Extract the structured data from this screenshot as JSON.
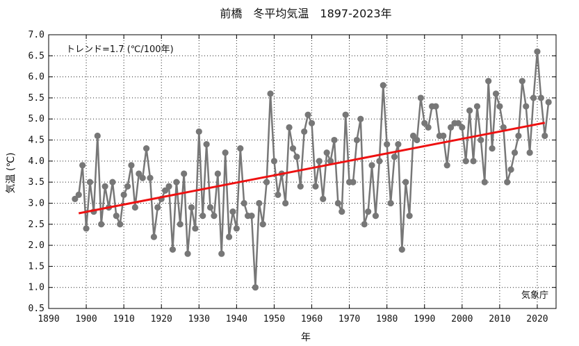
{
  "chart_data": {
    "type": "line",
    "title": "前橋　冬平均気温　1897-2023年",
    "xlabel": "年",
    "ylabel": "気温 (℃)",
    "xlim": [
      1890,
      2025
    ],
    "ylim": [
      0.5,
      7.0
    ],
    "xticks": [
      1890,
      1900,
      1910,
      1920,
      1930,
      1940,
      1950,
      1960,
      1970,
      1980,
      1990,
      2000,
      2010,
      2020
    ],
    "yticks": [
      0.5,
      1.0,
      1.5,
      2.0,
      2.5,
      3.0,
      3.5,
      4.0,
      4.5,
      5.0,
      5.5,
      6.0,
      6.5,
      7.0
    ],
    "grid": true,
    "trend_label": "トレンド=1.7 (℃/100年)",
    "source_label": "気象庁",
    "colors": {
      "series": "#777777",
      "trend": "#ee1111",
      "grid": "#222222"
    },
    "series": [
      {
        "x_start": 1897,
        "values": [
          3.1,
          3.2,
          3.9,
          2.4,
          3.5,
          2.8,
          4.6,
          2.5,
          3.4,
          2.9,
          3.5,
          2.7,
          2.5,
          3.2,
          3.4,
          3.9,
          2.9,
          3.7,
          3.6,
          4.3,
          3.6,
          2.2,
          2.9,
          3.1,
          3.3,
          3.4,
          1.9,
          3.5,
          2.5,
          3.7,
          1.8,
          2.9,
          2.4,
          4.7,
          2.7,
          4.4,
          2.9,
          2.7,
          3.7,
          1.8,
          4.2,
          2.2,
          2.8,
          2.4,
          4.3,
          3.0,
          2.7,
          2.7,
          1.0,
          3.0,
          2.5,
          3.5,
          5.6,
          4.0,
          3.2,
          3.7,
          3.0,
          4.8,
          4.3,
          4.1,
          3.4,
          4.7,
          5.1,
          4.9,
          3.4,
          4.0,
          3.1,
          4.2,
          4.0,
          4.5,
          3.0,
          2.8,
          5.1,
          3.5,
          3.5,
          4.5,
          5.0,
          2.5,
          2.8,
          3.9,
          2.7,
          4.0,
          5.8,
          4.4,
          3.0,
          4.1,
          4.4,
          1.9,
          3.5,
          2.7,
          4.6,
          4.5,
          5.5,
          4.9,
          4.8,
          5.3,
          5.3,
          4.6,
          4.6,
          3.9,
          4.8,
          4.9,
          4.9,
          4.8,
          4.0,
          5.2,
          4.0,
          5.3,
          4.5,
          3.5,
          5.9,
          4.3,
          5.6,
          5.3,
          4.8,
          3.5,
          3.8,
          4.2,
          4.6,
          5.9,
          5.3,
          4.2,
          5.5,
          6.6,
          5.5,
          4.6,
          5.4
        ]
      }
    ],
    "trend": {
      "x": [
        1898,
        2022
      ],
      "y": [
        2.76,
        4.91
      ]
    }
  }
}
